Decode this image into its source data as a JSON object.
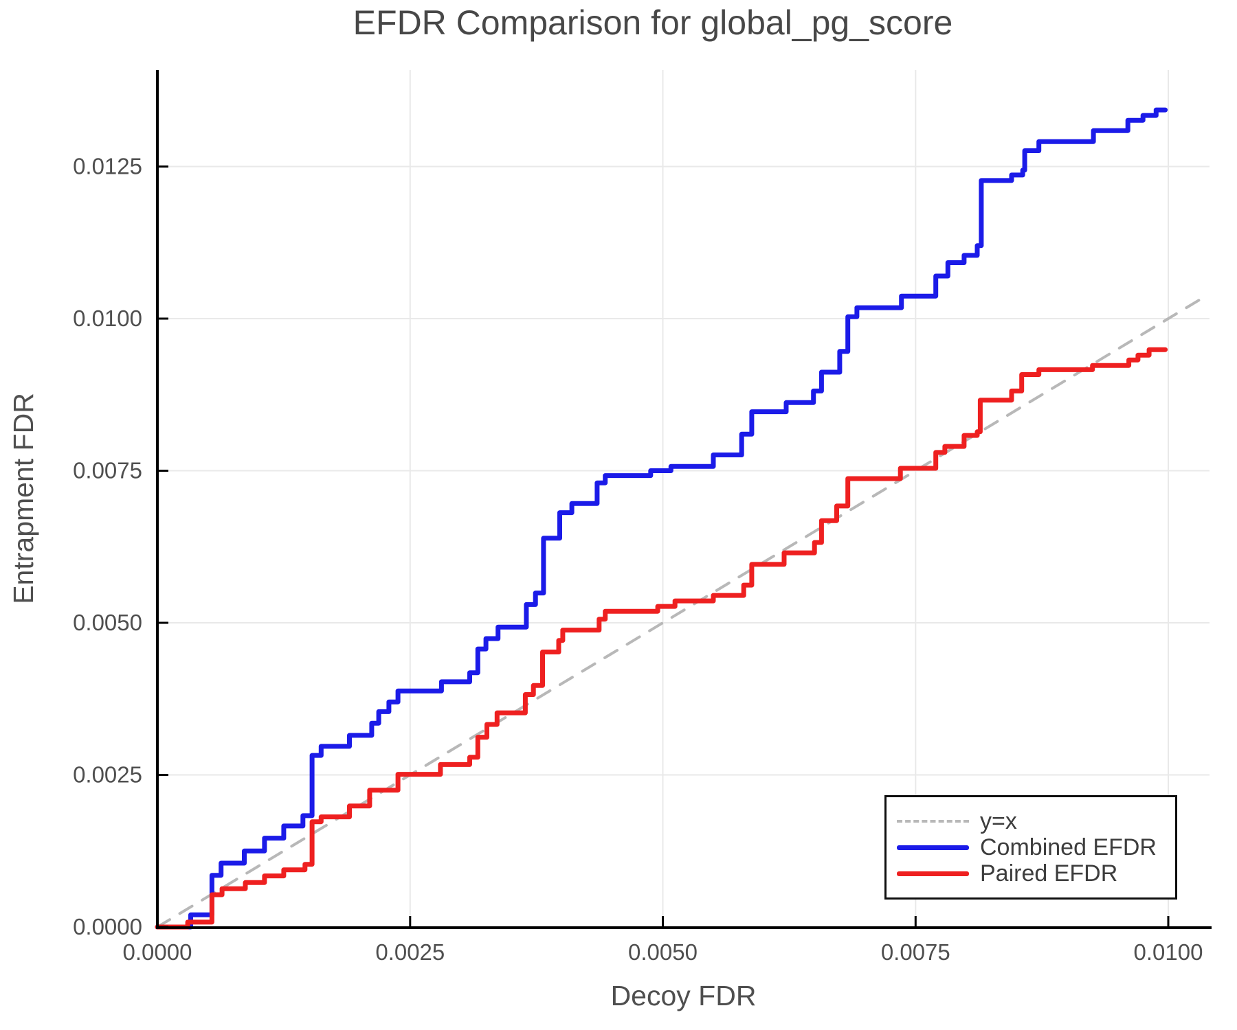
{
  "chart_data": {
    "type": "line",
    "title": "EFDR Comparison for global_pg_score",
    "xlabel": "Decoy FDR",
    "ylabel": "Entrapment FDR",
    "xlim": [
      0.0,
      0.0104
    ],
    "ylim": [
      0.0,
      0.0141
    ],
    "grid": true,
    "legend_position": "bottom-right",
    "x_ticks": {
      "values": [
        0.0,
        0.0025,
        0.005,
        0.0075,
        0.01
      ],
      "labels": [
        "0.0000",
        "0.0025",
        "0.0050",
        "0.0075",
        "0.0100"
      ]
    },
    "y_ticks": {
      "values": [
        0.0,
        0.0025,
        0.005,
        0.0075,
        0.01,
        0.0125
      ],
      "labels": [
        "0.0000",
        "0.0025",
        "0.0050",
        "0.0075",
        "0.0100",
        "0.0125"
      ]
    },
    "series": [
      {
        "name": "y=x",
        "line_style": "dashed",
        "interpolation": "linear",
        "color": "#b8b8b8",
        "points": [
          [
            0.0,
            0.0
          ],
          [
            0.0104,
            0.0104
          ]
        ]
      },
      {
        "name": "Combined EFDR",
        "line_style": "solid",
        "interpolation": "step-after",
        "color": "#1b1be8",
        "points": [
          [
            0.0,
            0.0
          ],
          [
            0.00033,
            0.0002
          ],
          [
            0.00054,
            0.00085
          ],
          [
            0.00063,
            0.00105
          ],
          [
            0.00086,
            0.00125
          ],
          [
            0.00106,
            0.00146
          ],
          [
            0.00125,
            0.00166
          ],
          [
            0.00144,
            0.00183
          ],
          [
            0.00153,
            0.00282
          ],
          [
            0.00162,
            0.00297
          ],
          [
            0.0019,
            0.00315
          ],
          [
            0.00212,
            0.00335
          ],
          [
            0.00219,
            0.00354
          ],
          [
            0.00229,
            0.0037
          ],
          [
            0.00238,
            0.00388
          ],
          [
            0.00281,
            0.00403
          ],
          [
            0.00309,
            0.00418
          ],
          [
            0.00317,
            0.00457
          ],
          [
            0.00325,
            0.00474
          ],
          [
            0.00337,
            0.00493
          ],
          [
            0.00365,
            0.0053
          ],
          [
            0.00374,
            0.00549
          ],
          [
            0.00382,
            0.00639
          ],
          [
            0.00398,
            0.00681
          ],
          [
            0.0041,
            0.00696
          ],
          [
            0.00435,
            0.0073
          ],
          [
            0.00443,
            0.00742
          ],
          [
            0.00488,
            0.0075
          ],
          [
            0.00508,
            0.00757
          ],
          [
            0.0055,
            0.00776
          ],
          [
            0.00578,
            0.0081
          ],
          [
            0.00588,
            0.00847
          ],
          [
            0.00622,
            0.00862
          ],
          [
            0.00649,
            0.00881
          ],
          [
            0.00657,
            0.00912
          ],
          [
            0.00675,
            0.00946
          ],
          [
            0.00683,
            0.01003
          ],
          [
            0.00692,
            0.01018
          ],
          [
            0.00736,
            0.01037
          ],
          [
            0.0077,
            0.0107
          ],
          [
            0.00782,
            0.01092
          ],
          [
            0.00798,
            0.01104
          ],
          [
            0.00811,
            0.0112
          ],
          [
            0.00815,
            0.01227
          ],
          [
            0.00845,
            0.01236
          ],
          [
            0.00856,
            0.01244
          ],
          [
            0.00858,
            0.01276
          ],
          [
            0.00872,
            0.01291
          ],
          [
            0.00926,
            0.01309
          ],
          [
            0.0096,
            0.01326
          ],
          [
            0.00975,
            0.01334
          ],
          [
            0.00988,
            0.01343
          ],
          [
            0.00997,
            0.01343
          ]
        ]
      },
      {
        "name": "Paired EFDR",
        "line_style": "solid",
        "interpolation": "step-after",
        "color": "#ee2020",
        "points": [
          [
            0.0,
            0.0
          ],
          [
            0.0003,
            8e-05
          ],
          [
            0.00054,
            0.00053
          ],
          [
            0.00064,
            0.00063
          ],
          [
            0.00087,
            0.00073
          ],
          [
            0.00106,
            0.00084
          ],
          [
            0.00125,
            0.00094
          ],
          [
            0.00146,
            0.00103
          ],
          [
            0.00153,
            0.00173
          ],
          [
            0.00162,
            0.00181
          ],
          [
            0.0019,
            0.00199
          ],
          [
            0.0021,
            0.00225
          ],
          [
            0.00238,
            0.00251
          ],
          [
            0.0028,
            0.00267
          ],
          [
            0.00309,
            0.00279
          ],
          [
            0.00317,
            0.00312
          ],
          [
            0.00326,
            0.00333
          ],
          [
            0.00336,
            0.00352
          ],
          [
            0.00364,
            0.00382
          ],
          [
            0.00372,
            0.00397
          ],
          [
            0.00381,
            0.00452
          ],
          [
            0.00397,
            0.00471
          ],
          [
            0.00401,
            0.00488
          ],
          [
            0.00437,
            0.00506
          ],
          [
            0.00443,
            0.00519
          ],
          [
            0.00495,
            0.00527
          ],
          [
            0.00512,
            0.00536
          ],
          [
            0.0055,
            0.00545
          ],
          [
            0.0058,
            0.00562
          ],
          [
            0.00588,
            0.00596
          ],
          [
            0.0062,
            0.00615
          ],
          [
            0.0065,
            0.00632
          ],
          [
            0.00657,
            0.00668
          ],
          [
            0.00672,
            0.00692
          ],
          [
            0.00683,
            0.00737
          ],
          [
            0.00735,
            0.00754
          ],
          [
            0.0077,
            0.0078
          ],
          [
            0.00779,
            0.0079
          ],
          [
            0.00798,
            0.00808
          ],
          [
            0.00811,
            0.00814
          ],
          [
            0.00814,
            0.00866
          ],
          [
            0.00845,
            0.00881
          ],
          [
            0.00855,
            0.00908
          ],
          [
            0.00872,
            0.00916
          ],
          [
            0.00925,
            0.00923
          ],
          [
            0.00961,
            0.00932
          ],
          [
            0.0097,
            0.0094
          ],
          [
            0.00981,
            0.00949
          ],
          [
            0.00997,
            0.00949
          ]
        ]
      }
    ]
  },
  "legend": {
    "entries": [
      {
        "label": "y=x"
      },
      {
        "label": "Combined EFDR"
      },
      {
        "label": "Paired EFDR"
      }
    ]
  }
}
